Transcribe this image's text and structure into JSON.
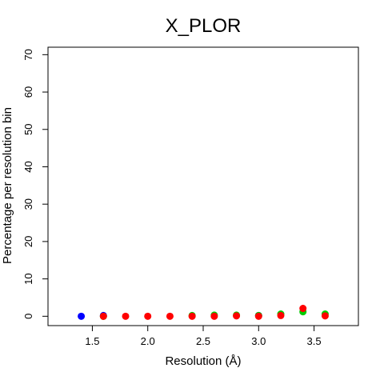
{
  "chart_data": {
    "type": "scatter",
    "title": "X_PLOR",
    "xlabel": "Resolution (Å)",
    "ylabel": "Percentage per resolution bin",
    "xlim": [
      1.1,
      3.9
    ],
    "ylim": [
      -2.5,
      72
    ],
    "xticks": [
      1.5,
      2.0,
      2.5,
      3.0,
      3.5
    ],
    "xtick_labels": [
      "1.5",
      "2.0",
      "2.5",
      "3.0",
      "3.5"
    ],
    "yticks": [
      0,
      10,
      20,
      30,
      40,
      50,
      60,
      70
    ],
    "ytick_labels": [
      "0",
      "10",
      "20",
      "30",
      "40",
      "50",
      "60",
      "70"
    ],
    "grid": false,
    "series": [
      {
        "color": "#0000ff",
        "x": [
          1.4,
          1.6,
          3.0
        ],
        "y": [
          0.0,
          0.2,
          0.2
        ]
      },
      {
        "color": "#00cc00",
        "x": [
          1.6,
          2.4,
          2.6,
          2.8,
          3.0,
          3.2,
          3.4,
          3.6
        ],
        "y": [
          0.0,
          0.2,
          0.3,
          0.3,
          0.2,
          0.6,
          1.2,
          0.6
        ]
      },
      {
        "color": "#ff0000",
        "x": [
          1.6,
          1.8,
          2.0,
          2.2,
          2.4,
          2.6,
          2.8,
          3.0,
          3.2,
          3.4,
          3.6
        ],
        "y": [
          0.0,
          0.0,
          0.0,
          0.0,
          0.0,
          0.0,
          0.1,
          0.0,
          0.2,
          2.1,
          0.1
        ]
      }
    ]
  }
}
